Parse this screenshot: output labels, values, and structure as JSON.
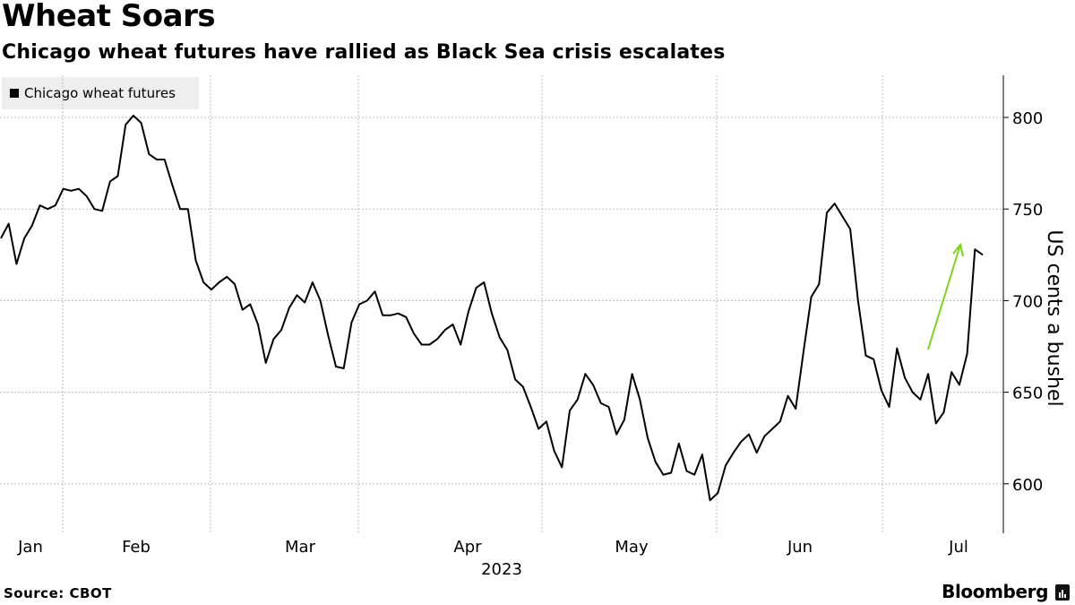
{
  "header": {
    "title": "Wheat Soars",
    "subtitle": "Chicago wheat futures have rallied as Black Sea crisis escalates"
  },
  "footer": {
    "source": "Source: CBOT",
    "brand": "Bloomberg"
  },
  "colors": {
    "line": "#000000",
    "arrow": "#7ed321",
    "grid": "#bbbbbb",
    "legend_bg": "#eeeeee"
  },
  "chart_data": {
    "type": "line",
    "title": "Wheat Soars",
    "subtitle": "Chicago wheat futures have rallied as Black Sea crisis escalates",
    "ylabel": "US cents a bushel",
    "xlabel": "2023",
    "year_label": "2023",
    "ylim": [
      573,
      823
    ],
    "yticks": [
      600,
      650,
      700,
      750,
      800
    ],
    "month_labels": [
      "Jan",
      "Feb",
      "Mar",
      "Apr",
      "May",
      "Jun",
      "Jul"
    ],
    "legend": [
      "Chicago wheat futures"
    ],
    "legend_position": "top-left",
    "y_axis_position": "right",
    "grid": true,
    "annotation": {
      "type": "arrow",
      "color": "green",
      "direction": "up"
    },
    "series": [
      {
        "name": "Chicago wheat futures",
        "values": [
          734,
          742,
          720,
          734,
          741,
          752,
          750,
          752,
          761,
          760,
          761,
          757,
          750,
          749,
          765,
          768,
          796,
          801,
          797,
          780,
          777,
          777,
          763,
          750,
          750,
          722,
          710,
          706,
          710,
          713,
          709,
          695,
          698,
          687,
          666,
          679,
          684,
          696,
          703,
          699,
          710,
          700,
          681,
          664,
          663,
          688,
          698,
          700,
          705,
          692,
          692,
          693,
          691,
          682,
          676,
          676,
          679,
          684,
          687,
          676,
          694,
          707,
          710,
          693,
          680,
          673,
          657,
          653,
          642,
          630,
          634,
          618,
          609,
          640,
          646,
          660,
          654,
          644,
          642,
          627,
          635,
          660,
          646,
          625,
          612,
          605,
          606,
          622,
          607,
          605,
          616,
          591,
          595,
          610,
          617,
          623,
          627,
          617,
          626,
          630,
          634,
          648,
          641,
          672,
          702,
          709,
          748,
          753,
          746,
          739,
          700,
          670,
          668,
          651,
          642,
          674,
          658,
          650,
          646,
          660,
          633,
          639,
          661,
          654,
          671,
          728,
          725
        ]
      }
    ]
  }
}
